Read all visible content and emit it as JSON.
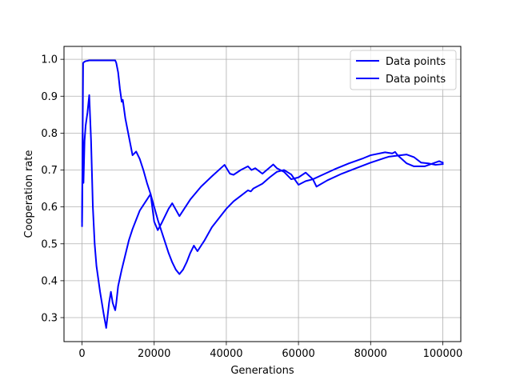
{
  "chart_data": {
    "type": "line",
    "title": "",
    "xlabel": "Generations",
    "ylabel": "Cooperation rate",
    "xlim": [
      -5000,
      105000
    ],
    "ylim": [
      0.235,
      1.035
    ],
    "xticks": [
      0,
      20000,
      40000,
      60000,
      80000,
      100000
    ],
    "xtick_labels": [
      "0",
      "20000",
      "40000",
      "60000",
      "80000",
      "100000"
    ],
    "yticks": [
      0.3,
      0.4,
      0.5,
      0.6,
      0.7,
      0.8,
      0.9,
      1.0
    ],
    "ytick_labels": [
      "0.3",
      "0.4",
      "0.5",
      "0.6",
      "0.7",
      "0.8",
      "0.9",
      "1.0"
    ],
    "grid": true,
    "legend_position": "top-right",
    "line_color": "#0000ff",
    "series": [
      {
        "name": "Data points",
        "x": [
          0,
          300,
          600,
          1000,
          1500,
          2000,
          3000,
          4000,
          5000,
          6000,
          7000,
          7500,
          8000,
          8500,
          9000,
          9200,
          9500,
          10000,
          10500,
          11000,
          11300,
          12000,
          13000,
          14000,
          15000,
          16000,
          17000,
          18000,
          19000,
          20000,
          21000,
          22000,
          23000,
          24000,
          25000,
          26000,
          27000,
          28000,
          29000,
          30000,
          31000,
          32000,
          34000,
          36000,
          38000,
          40000,
          42000,
          44000,
          46000,
          46800,
          47500,
          50000,
          52000,
          54000,
          56000,
          58000,
          60000,
          62000,
          64000,
          66000,
          70000,
          74000,
          78000,
          80000,
          84000,
          86000,
          86800,
          87500,
          90000,
          92000,
          95000,
          97000,
          99000,
          100000
        ],
        "y": [
          0.548,
          0.99,
          0.993,
          0.995,
          0.996,
          0.997,
          0.997,
          0.997,
          0.997,
          0.997,
          0.997,
          0.997,
          0.997,
          0.997,
          0.997,
          0.997,
          0.99,
          0.965,
          0.92,
          0.885,
          0.89,
          0.84,
          0.79,
          0.74,
          0.75,
          0.73,
          0.7,
          0.665,
          0.635,
          0.6,
          0.565,
          0.535,
          0.505,
          0.475,
          0.45,
          0.43,
          0.418,
          0.43,
          0.45,
          0.475,
          0.495,
          0.48,
          0.51,
          0.545,
          0.57,
          0.595,
          0.615,
          0.63,
          0.645,
          0.642,
          0.65,
          0.663,
          0.68,
          0.695,
          0.7,
          0.688,
          0.66,
          0.67,
          0.675,
          0.684,
          0.702,
          0.718,
          0.732,
          0.74,
          0.748,
          0.745,
          0.749,
          0.74,
          0.718,
          0.71,
          0.71,
          0.717,
          0.724,
          0.72
        ]
      },
      {
        "name": "Data points",
        "x": [
          0,
          200,
          400,
          700,
          1000,
          1500,
          2000,
          2500,
          3000,
          3500,
          4000,
          5000,
          6000,
          6700,
          7500,
          8000,
          8500,
          9000,
          9200,
          9500,
          10000,
          11000,
          12000,
          13000,
          14000,
          15000,
          16000,
          17000,
          18000,
          19000,
          20000,
          21000,
          22000,
          24000,
          25000,
          27000,
          30000,
          33000,
          36000,
          39500,
          41000,
          42000,
          44000,
          46000,
          47000,
          48000,
          50000,
          53000,
          54000,
          56000,
          58000,
          60000,
          62000,
          64000,
          65000,
          68000,
          72000,
          76000,
          80000,
          84000,
          85000,
          90000,
          92000,
          94000,
          96000,
          98000,
          100000
        ],
        "y": [
          0.56,
          0.8,
          0.665,
          0.78,
          0.82,
          0.855,
          0.903,
          0.78,
          0.6,
          0.5,
          0.44,
          0.37,
          0.31,
          0.272,
          0.34,
          0.37,
          0.34,
          0.325,
          0.32,
          0.34,
          0.385,
          0.43,
          0.47,
          0.51,
          0.54,
          0.565,
          0.59,
          0.605,
          0.62,
          0.635,
          0.56,
          0.537,
          0.555,
          0.595,
          0.61,
          0.575,
          0.62,
          0.655,
          0.683,
          0.714,
          0.69,
          0.687,
          0.7,
          0.71,
          0.7,
          0.705,
          0.69,
          0.715,
          0.705,
          0.695,
          0.675,
          0.68,
          0.693,
          0.675,
          0.655,
          0.672,
          0.69,
          0.705,
          0.72,
          0.733,
          0.736,
          0.742,
          0.735,
          0.72,
          0.718,
          0.714,
          0.716
        ]
      }
    ]
  }
}
